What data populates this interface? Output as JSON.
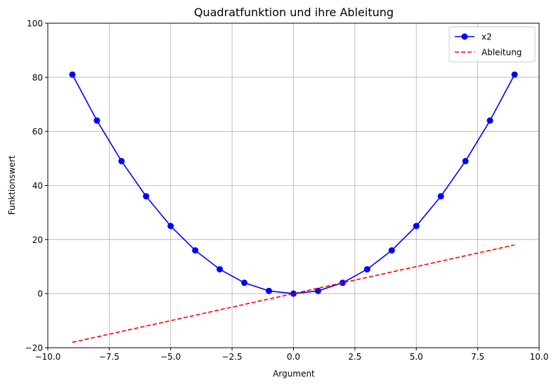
{
  "chart_data": {
    "type": "line",
    "title": "Quadratfunktion und ihre Ableitung",
    "xlabel": "Argument",
    "ylabel": "Funktionswert",
    "xlim": [
      -10,
      10
    ],
    "ylim": [
      -20,
      100
    ],
    "xticks": [
      -10,
      -7.5,
      -5,
      -2.5,
      0,
      2.5,
      5,
      7.5,
      10
    ],
    "xtick_labels": [
      "−10.0",
      "−7.5",
      "−5.0",
      "−2.5",
      "0.0",
      "2.5",
      "5.0",
      "7.5",
      "10.0"
    ],
    "yticks": [
      -20,
      0,
      20,
      40,
      60,
      80,
      100
    ],
    "ytick_labels": [
      "−20",
      "0",
      "20",
      "40",
      "60",
      "80",
      "100"
    ],
    "grid": true,
    "legend_position": "top-right",
    "series": [
      {
        "name": "x2",
        "color": "#0000ff",
        "style": "solid",
        "marker": "circle",
        "x": [
          -9,
          -8,
          -7,
          -6,
          -5,
          -4,
          -3,
          -2,
          -1,
          0,
          1,
          2,
          3,
          4,
          5,
          6,
          7,
          8,
          9
        ],
        "y": [
          81,
          64,
          49,
          36,
          25,
          16,
          9,
          4,
          1,
          0,
          1,
          4,
          9,
          16,
          25,
          36,
          49,
          64,
          81
        ]
      },
      {
        "name": "Ableitung",
        "color": "#ff0000",
        "style": "dashed",
        "marker": "none",
        "x": [
          -9,
          -8,
          -7,
          -6,
          -5,
          -4,
          -3,
          -2,
          -1,
          0,
          1,
          2,
          3,
          4,
          5,
          6,
          7,
          8,
          9
        ],
        "y": [
          -18,
          -16,
          -14,
          -12,
          -10,
          -8,
          -6,
          -4,
          -2,
          0,
          2,
          4,
          6,
          8,
          10,
          12,
          14,
          16,
          18
        ]
      }
    ]
  }
}
